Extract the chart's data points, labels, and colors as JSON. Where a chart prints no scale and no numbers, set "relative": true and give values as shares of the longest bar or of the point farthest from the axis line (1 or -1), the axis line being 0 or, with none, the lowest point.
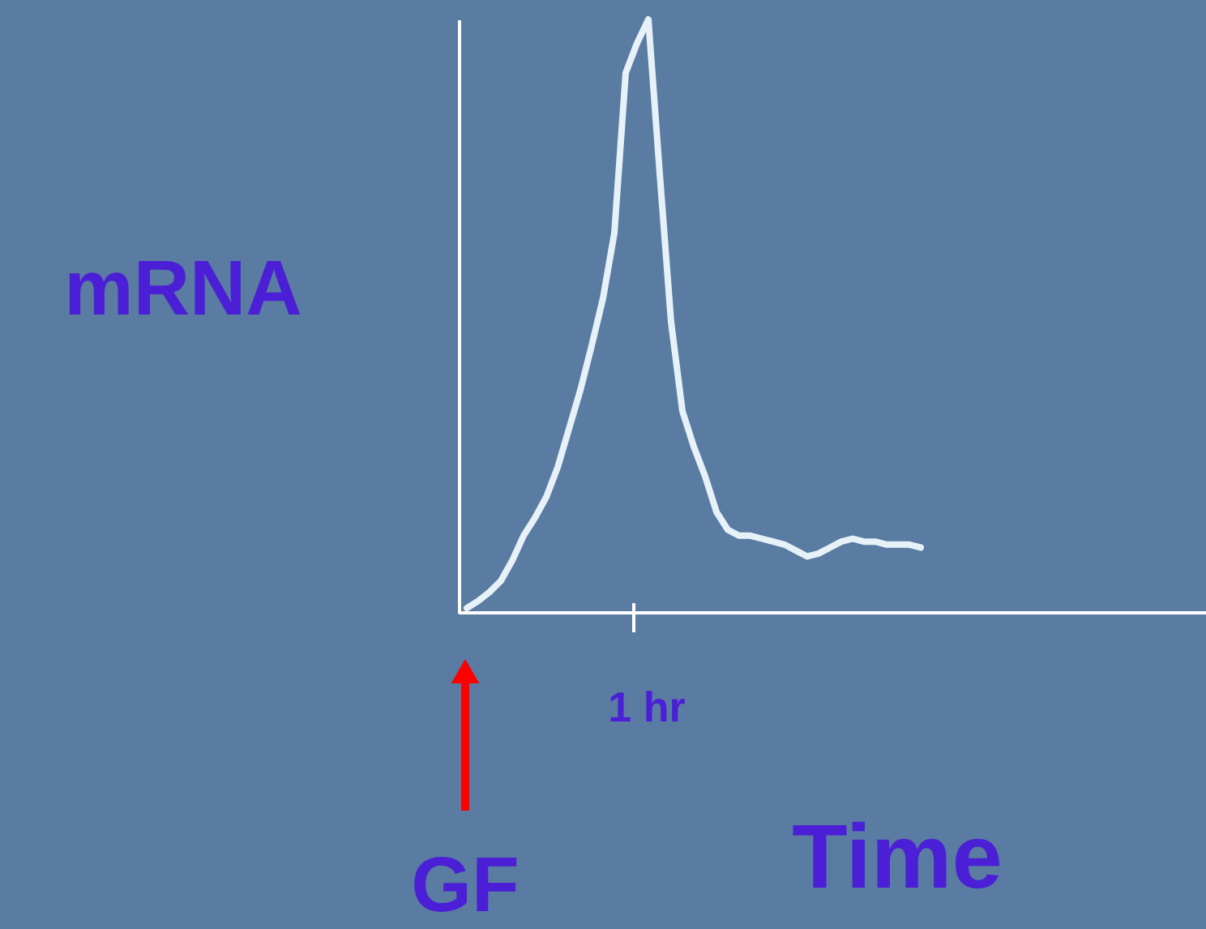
{
  "chart_data": {
    "type": "line",
    "relative": true,
    "xlabel": "Time",
    "ylabel": "mRNA",
    "categories": [
      null,
      null,
      null,
      null,
      null,
      null,
      null,
      null,
      null,
      null,
      null,
      null,
      null,
      null,
      null,
      null,
      null,
      null,
      null,
      null,
      null,
      null,
      null,
      null,
      null,
      null,
      null,
      null,
      null,
      null,
      null,
      null,
      null,
      null,
      null,
      null,
      null,
      null,
      null,
      null,
      null
    ],
    "series": [
      {
        "color": "#e6f2f7",
        "values": [
          0.008,
          0.02,
          0.035,
          0.054,
          0.088,
          0.13,
          0.16,
          0.195,
          0.245,
          0.31,
          0.375,
          0.45,
          0.53,
          0.64,
          0.91,
          0.96,
          1,
          0.74,
          0.49,
          0.34,
          0.28,
          0.23,
          0.17,
          0.14,
          0.13,
          0.13,
          0.125,
          0.12,
          0.115,
          0.105,
          0.095,
          0.1,
          0.11,
          0.12,
          0.125,
          0.12,
          0.12,
          0.115,
          0.115,
          0.115,
          0.11
        ]
      }
    ],
    "annotations": [
      "1 hr",
      "GF"
    ],
    "grid": false,
    "marker": "none",
    "line_style": "solid"
  }
}
